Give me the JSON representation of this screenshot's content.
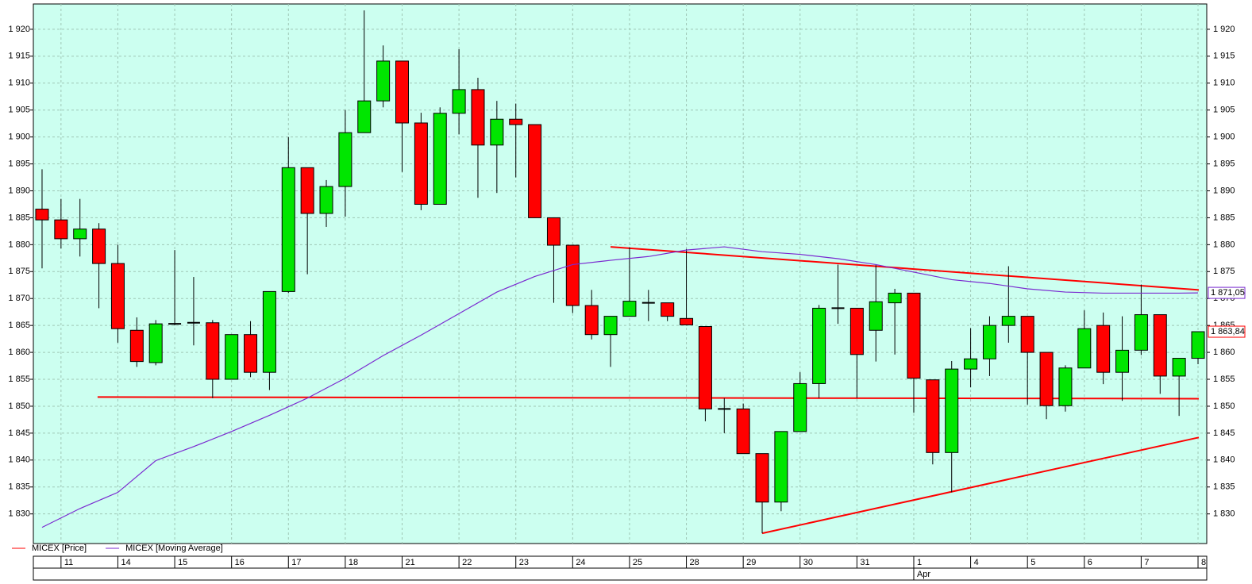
{
  "chart_data": {
    "type": "candlestick",
    "x": [
      0,
      1,
      2,
      3,
      4,
      5,
      6,
      7,
      8,
      9,
      10,
      11,
      12,
      13,
      14,
      15,
      16,
      17,
      18,
      19,
      20,
      21,
      22,
      23,
      24,
      25,
      26,
      27,
      28,
      29,
      30,
      31,
      32,
      33,
      34,
      35,
      36,
      37,
      38,
      39,
      40,
      41,
      42,
      43,
      44,
      45,
      46,
      47,
      48,
      49,
      50,
      51,
      52,
      53,
      54,
      55,
      56,
      57,
      58,
      59,
      60,
      61
    ],
    "xlim": [
      -0.46,
      61.46
    ],
    "xticks": [
      {
        "value": 1,
        "label": "11"
      },
      {
        "value": 4,
        "label": "14"
      },
      {
        "value": 7,
        "label": "15"
      },
      {
        "value": 10,
        "label": "16"
      },
      {
        "value": 13,
        "label": "17"
      },
      {
        "value": 16,
        "label": "18"
      },
      {
        "value": 19,
        "label": "21"
      },
      {
        "value": 22,
        "label": "22"
      },
      {
        "value": 25,
        "label": "23"
      },
      {
        "value": 28,
        "label": "24"
      },
      {
        "value": 31,
        "label": "25"
      },
      {
        "value": 34,
        "label": "28"
      },
      {
        "value": 37,
        "label": "29"
      },
      {
        "value": 40,
        "label": "30"
      },
      {
        "value": 43,
        "label": "31"
      },
      {
        "value": 46,
        "label": "1"
      },
      {
        "value": 49,
        "label": "4"
      },
      {
        "value": 52,
        "label": "5"
      },
      {
        "value": 55,
        "label": "6"
      },
      {
        "value": 58,
        "label": "7"
      },
      {
        "value": 61,
        "label": "8"
      }
    ],
    "month_ticks": [
      {
        "value": 46,
        "label": "Apr"
      }
    ],
    "ylim": [
      1824.5,
      1924.7
    ],
    "yticks": [
      {
        "value": 1830,
        "label": "1 830"
      },
      {
        "value": 1835,
        "label": "1 835"
      },
      {
        "value": 1840,
        "label": "1 840"
      },
      {
        "value": 1845,
        "label": "1 845"
      },
      {
        "value": 1850,
        "label": "1 850"
      },
      {
        "value": 1855,
        "label": "1 855"
      },
      {
        "value": 1860,
        "label": "1 860"
      },
      {
        "value": 1865,
        "label": "1 865"
      },
      {
        "value": 1870,
        "label": "1 870"
      },
      {
        "value": 1875,
        "label": "1 875"
      },
      {
        "value": 1880,
        "label": "1 880"
      },
      {
        "value": 1885,
        "label": "1 885"
      },
      {
        "value": 1890,
        "label": "1 890"
      },
      {
        "value": 1895,
        "label": "1 895"
      },
      {
        "value": 1900,
        "label": "1 900"
      },
      {
        "value": 1905,
        "label": "1 905"
      },
      {
        "value": 1910,
        "label": "1 910"
      },
      {
        "value": 1915,
        "label": "1 915"
      },
      {
        "value": 1920,
        "label": "1 920"
      }
    ],
    "grid": true,
    "legend": "bottom-left",
    "series": [
      {
        "name": "MICEX [Price]",
        "color": "#ff0000",
        "up_color": "#00e600",
        "down_color": "#ff0000",
        "open": [
          1886.6,
          1884.6,
          1881.1,
          1882.9,
          1876.5,
          1864.1,
          1858.1,
          1865.3,
          1865.5,
          1865.5,
          1855,
          1863.3,
          1856.3,
          1871.3,
          1894.3,
          1885.8,
          1890.8,
          1900.8,
          1906.7,
          1914.1,
          1902.6,
          1887.5,
          1904.4,
          1908.8,
          1898.5,
          1903.3,
          1902.3,
          1885,
          1879.9,
          1868.7,
          1863.3,
          1866.7,
          1869.2,
          1869.2,
          1866.3,
          1864.8,
          1849.5,
          1849.5,
          1841.2,
          1832.2,
          1845.3,
          1854.2,
          1868.2,
          1868.2,
          1864.1,
          1869.2,
          1871,
          1854.9,
          1841.4,
          1856.9,
          1858.8,
          1865,
          1866.7,
          1860,
          1850.1,
          1857.1,
          1865,
          1856.3,
          1860.4,
          1867,
          1855.6,
          1858.9
        ],
        "high": [
          1894,
          1888.5,
          1888.5,
          1884,
          1880,
          1866.5,
          1866,
          1879,
          1874,
          1866,
          1863.3,
          1865.8,
          1871.3,
          1900,
          1894.3,
          1892,
          1905,
          1923.5,
          1917,
          1914.1,
          1904.5,
          1905.5,
          1916.3,
          1911,
          1906.7,
          1906.2,
          1902.3,
          1885,
          1879.9,
          1871.6,
          1866.7,
          1879.5,
          1871.6,
          1869.2,
          1879.2,
          1864.8,
          1851.5,
          1850.5,
          1841.2,
          1845.3,
          1856.3,
          1868.8,
          1876.3,
          1868.2,
          1876.2,
          1871.8,
          1871,
          1854.9,
          1858.4,
          1864.5,
          1866.7,
          1876,
          1866.7,
          1860,
          1857.6,
          1867.8,
          1867.4,
          1866.7,
          1872.6,
          1867,
          1858.9,
          1863.9
        ],
        "low": [
          1875.6,
          1879.3,
          1877.8,
          1868.2,
          1861.8,
          1857.3,
          1857.6,
          1865,
          1861.3,
          1851.5,
          1855,
          1855.4,
          1853,
          1871,
          1874.5,
          1883.3,
          1885.2,
          1900.8,
          1905.5,
          1893.5,
          1886.4,
          1887.5,
          1900.5,
          1888.7,
          1889.6,
          1892.5,
          1885,
          1869.2,
          1867.3,
          1862.4,
          1857.3,
          1866.7,
          1865.8,
          1865.8,
          1865,
          1847.2,
          1845,
          1841.2,
          1826.4,
          1830.5,
          1845.3,
          1851.5,
          1865.3,
          1851.5,
          1858.3,
          1859.6,
          1848.8,
          1839.2,
          1834,
          1853.5,
          1855.6,
          1861.8,
          1850.3,
          1847.6,
          1849,
          1857.1,
          1854.1,
          1851,
          1859.5,
          1852.3,
          1848.2,
          1857.8
        ],
        "close": [
          1884.6,
          1881.1,
          1882.9,
          1876.5,
          1864.4,
          1858.3,
          1865.3,
          1865.3,
          1865.5,
          1855,
          1863.3,
          1856.3,
          1871.3,
          1894.3,
          1885.8,
          1890.8,
          1900.8,
          1906.7,
          1914.1,
          1902.6,
          1887.5,
          1904.4,
          1908.8,
          1898.5,
          1903.3,
          1902.3,
          1885,
          1879.9,
          1868.7,
          1863.3,
          1866.7,
          1869.5,
          1869.2,
          1866.7,
          1865.1,
          1849.5,
          1849.5,
          1841.2,
          1832.2,
          1845.3,
          1854.2,
          1868.2,
          1868.2,
          1859.6,
          1869.4,
          1871,
          1855.2,
          1841.4,
          1856.9,
          1858.8,
          1865,
          1866.7,
          1860,
          1850.1,
          1857.1,
          1864.4,
          1856.3,
          1860.4,
          1867,
          1855.6,
          1858.9,
          1863.84
        ],
        "value_labels": [
          null,
          null,
          null,
          null,
          null,
          null,
          null,
          null,
          null,
          null,
          null,
          null,
          null,
          null,
          null,
          null,
          null,
          null,
          null,
          null,
          null,
          null,
          null,
          null,
          null,
          null,
          null,
          null,
          null,
          null,
          null,
          null,
          null,
          null,
          null,
          null,
          null,
          null,
          null,
          null,
          null,
          null,
          null,
          null,
          null,
          null,
          null,
          null,
          null,
          null,
          null,
          null,
          null,
          null,
          null,
          null,
          null,
          null,
          null,
          null,
          null,
          "1 863,84"
        ]
      },
      {
        "name": "MICEX [Moving Average]",
        "type": "line",
        "color": "#7a2ad0",
        "x": [
          0,
          2,
          4,
          6,
          8,
          10,
          12,
          14,
          16,
          18,
          20,
          22,
          24,
          26,
          28,
          30,
          32,
          34,
          36,
          38,
          40,
          42,
          44,
          46,
          48,
          50,
          52,
          54,
          56,
          58,
          60,
          61
        ],
        "values": [
          1827.5,
          1831.0,
          1834.0,
          1839.9,
          1842.5,
          1845.3,
          1848.3,
          1851.5,
          1855.2,
          1859.4,
          1863.2,
          1867.2,
          1871.2,
          1874.1,
          1876.3,
          1877.1,
          1877.8,
          1879.0,
          1879.6,
          1878.7,
          1878.2,
          1877.4,
          1876.3,
          1874.9,
          1873.5,
          1872.8,
          1871.8,
          1871.2,
          1871.0,
          1871.0,
          1871.0,
          1871.05
        ],
        "value_labels": [
          null,
          null,
          null,
          null,
          null,
          null,
          null,
          null,
          null,
          null,
          null,
          null,
          null,
          null,
          null,
          null,
          null,
          null,
          null,
          null,
          null,
          null,
          null,
          null,
          null,
          null,
          null,
          null,
          null,
          null,
          null,
          "1 871,05"
        ]
      }
    ],
    "trendlines": [
      {
        "color": "#ff0000",
        "x": [
          2.93,
          61.04
        ],
        "values": [
          1851.7,
          1851.4
        ]
      },
      {
        "color": "#ff0000",
        "x": [
          30,
          61.04
        ],
        "values": [
          1879.6,
          1871.6
        ]
      },
      {
        "color": "#ff0000",
        "x": [
          38,
          61.04
        ],
        "values": [
          1826.4,
          1844.2
        ]
      }
    ]
  }
}
